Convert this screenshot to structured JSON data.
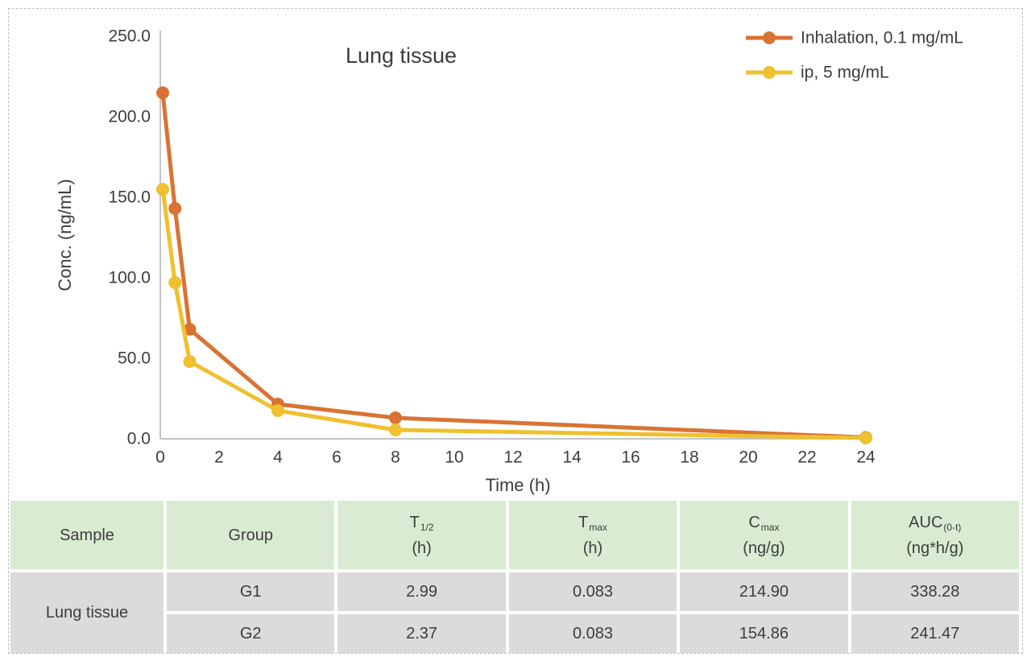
{
  "chart": {
    "title": "Lung tissue",
    "xlabel": "Time (h)",
    "ylabel": "Conc. (ng/mL)",
    "legend": [
      {
        "label": "Inhalation, 0.1 mg/mL",
        "color": "#d97334"
      },
      {
        "label": "ip, 5 mg/mL",
        "color": "#efc02f"
      }
    ]
  },
  "chart_data": {
    "type": "line",
    "title": "Lung tissue",
    "xlabel": "Time (h)",
    "ylabel": "Conc. (ng/mL)",
    "x": [
      0.083,
      0.5,
      1,
      4,
      8,
      24
    ],
    "series": [
      {
        "name": "Inhalation, 0.1 mg/mL",
        "color": "#d97334",
        "values": [
          214.9,
          143.0,
          68.0,
          21.5,
          13.0,
          0.8
        ]
      },
      {
        "name": "ip, 5 mg/mL",
        "color": "#efc02f",
        "values": [
          154.9,
          97.0,
          48.0,
          17.5,
          5.5,
          0.5
        ]
      }
    ],
    "xlim": [
      0,
      24
    ],
    "ylim": [
      0,
      250
    ],
    "x_ticks": [
      0,
      2,
      4,
      6,
      8,
      10,
      12,
      14,
      16,
      18,
      20,
      22,
      24
    ],
    "y_tick_labels": [
      "0.0",
      "50.0",
      "100.0",
      "150.0",
      "200.0",
      "250.0"
    ],
    "grid": false,
    "legend_position": "top-right"
  },
  "colors": {
    "axis": "#c4c4c4",
    "text": "#3d3d3d",
    "header_bg": "#d9ecd3",
    "body_bg": "#dbdbdb"
  },
  "table": {
    "headers": [
      {
        "main": "Sample",
        "sub": "",
        "unit": ""
      },
      {
        "main": "Group",
        "sub": "",
        "unit": ""
      },
      {
        "main": "T",
        "sub": "1/2",
        "unit": "(h)"
      },
      {
        "main": "T",
        "sub": "max",
        "unit": "(h)"
      },
      {
        "main": "C",
        "sub": "max",
        "unit": "(ng/g)"
      },
      {
        "main": "AUC",
        "sub": "(0-t)",
        "unit": "(ng*h/g)"
      }
    ],
    "sample_label": "Lung tissue",
    "rows": [
      {
        "group": "G1",
        "t_half": "2.99",
        "t_max": "0.083",
        "c_max": "214.90",
        "auc": "338.28"
      },
      {
        "group": "G2",
        "t_half": "2.37",
        "t_max": "0.083",
        "c_max": "154.86",
        "auc": "241.47"
      }
    ]
  }
}
